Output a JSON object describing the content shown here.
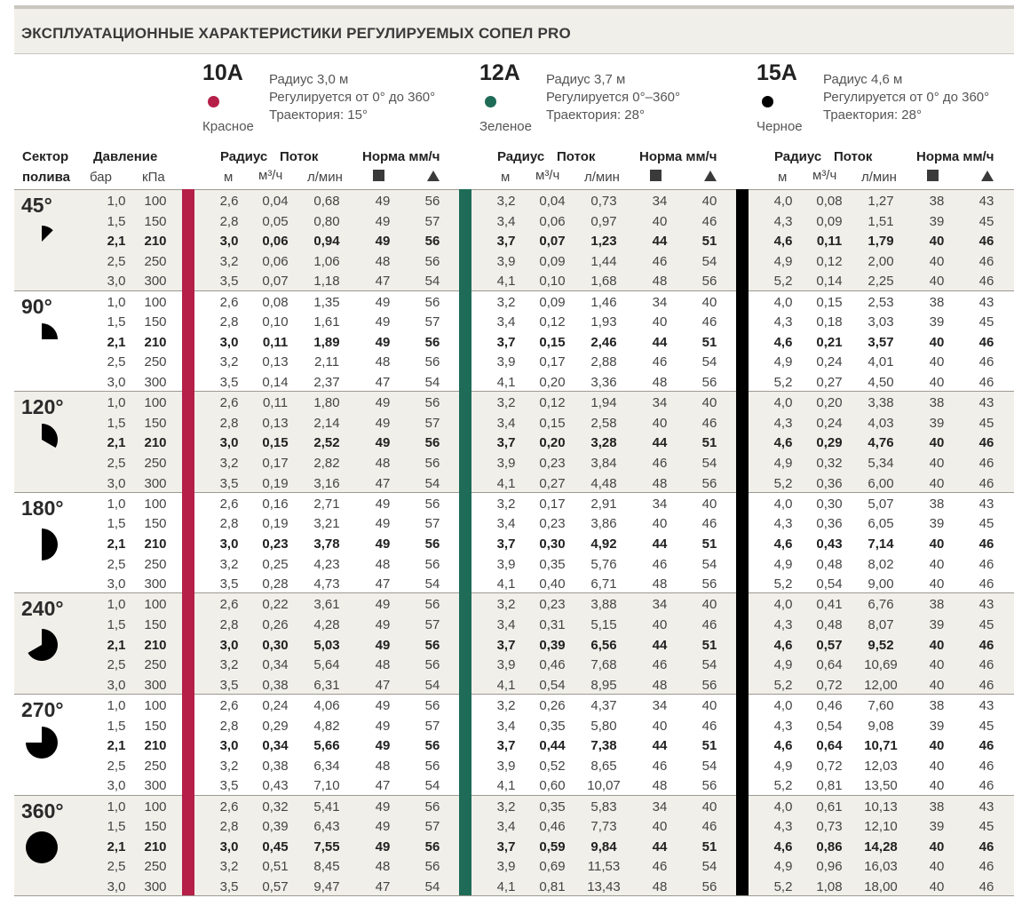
{
  "title": "ЭКСПЛУАТАЦИОННЫЕ ХАРАКТЕРИСТИКИ РЕГУЛИРУЕМЫХ СОПЕЛ PRO",
  "nozzles": [
    {
      "name": "10A",
      "color_name": "Красное",
      "color": "#b51f48",
      "radius": "Радиус 3,0 м",
      "adjust": "Регулируется от 0° до 360°",
      "trajectory": "Траектория: 15°"
    },
    {
      "name": "12A",
      "color_name": "Зеленое",
      "color": "#1e6b57",
      "radius": "Радиус 3,7 м",
      "adjust": "Регулируется 0°–360°",
      "trajectory": "Траектория: 28°"
    },
    {
      "name": "15A",
      "color_name": "Черное",
      "color": "#000000",
      "radius": "Радиус 4,6 м",
      "adjust": "Регулируется от 0° до 360°",
      "trajectory": "Траектория: 28°"
    }
  ],
  "headers": {
    "sector": "Сектор",
    "sector2": "полива",
    "pressure": "Давление",
    "bar": "бар",
    "kpa": "кПа",
    "radius": "Радиус",
    "m": "м",
    "flow": "Поток",
    "m3h": "м³/ч",
    "lmin": "л/мин",
    "norm": "Норма мм/ч"
  },
  "pressures": [
    [
      "1,0",
      "100"
    ],
    [
      "1,5",
      "150"
    ],
    [
      "2,1",
      "210"
    ],
    [
      "2,5",
      "250"
    ],
    [
      "3,0",
      "300"
    ]
  ],
  "sectors": [
    {
      "label": "45°",
      "rows": [
        [
          "2,6",
          "0,04",
          "0,68",
          "49",
          "56",
          "3,2",
          "0,04",
          "0,73",
          "34",
          "40",
          "4,0",
          "0,08",
          "1,27",
          "38",
          "43"
        ],
        [
          "2,8",
          "0,05",
          "0,80",
          "49",
          "57",
          "3,4",
          "0,06",
          "0,97",
          "40",
          "46",
          "4,3",
          "0,09",
          "1,51",
          "39",
          "45"
        ],
        [
          "3,0",
          "0,06",
          "0,94",
          "49",
          "56",
          "3,7",
          "0,07",
          "1,23",
          "44",
          "51",
          "4,6",
          "0,11",
          "1,79",
          "40",
          "46"
        ],
        [
          "3,2",
          "0,06",
          "1,06",
          "48",
          "56",
          "3,9",
          "0,09",
          "1,44",
          "46",
          "54",
          "4,9",
          "0,12",
          "2,00",
          "40",
          "46"
        ],
        [
          "3,5",
          "0,07",
          "1,18",
          "47",
          "54",
          "4,1",
          "0,10",
          "1,68",
          "48",
          "56",
          "5,2",
          "0,14",
          "2,25",
          "40",
          "46"
        ]
      ]
    },
    {
      "label": "90°",
      "rows": [
        [
          "2,6",
          "0,08",
          "1,35",
          "49",
          "56",
          "3,2",
          "0,09",
          "1,46",
          "34",
          "40",
          "4,0",
          "0,15",
          "2,53",
          "38",
          "43"
        ],
        [
          "2,8",
          "0,10",
          "1,61",
          "49",
          "57",
          "3,4",
          "0,12",
          "1,93",
          "40",
          "46",
          "4,3",
          "0,18",
          "3,03",
          "39",
          "45"
        ],
        [
          "3,0",
          "0,11",
          "1,89",
          "49",
          "56",
          "3,7",
          "0,15",
          "2,46",
          "44",
          "51",
          "4,6",
          "0,21",
          "3,57",
          "40",
          "46"
        ],
        [
          "3,2",
          "0,13",
          "2,11",
          "48",
          "56",
          "3,9",
          "0,17",
          "2,88",
          "46",
          "54",
          "4,9",
          "0,24",
          "4,01",
          "40",
          "46"
        ],
        [
          "3,5",
          "0,14",
          "2,37",
          "47",
          "54",
          "4,1",
          "0,20",
          "3,36",
          "48",
          "56",
          "5,2",
          "0,27",
          "4,50",
          "40",
          "46"
        ]
      ]
    },
    {
      "label": "120°",
      "rows": [
        [
          "2,6",
          "0,11",
          "1,80",
          "49",
          "56",
          "3,2",
          "0,12",
          "1,94",
          "34",
          "40",
          "4,0",
          "0,20",
          "3,38",
          "38",
          "43"
        ],
        [
          "2,8",
          "0,13",
          "2,14",
          "49",
          "57",
          "3,4",
          "0,15",
          "2,58",
          "40",
          "46",
          "4,3",
          "0,24",
          "4,03",
          "39",
          "45"
        ],
        [
          "3,0",
          "0,15",
          "2,52",
          "49",
          "56",
          "3,7",
          "0,20",
          "3,28",
          "44",
          "51",
          "4,6",
          "0,29",
          "4,76",
          "40",
          "46"
        ],
        [
          "3,2",
          "0,17",
          "2,82",
          "48",
          "56",
          "3,9",
          "0,23",
          "3,84",
          "46",
          "54",
          "4,9",
          "0,32",
          "5,34",
          "40",
          "46"
        ],
        [
          "3,5",
          "0,19",
          "3,16",
          "47",
          "54",
          "4,1",
          "0,27",
          "4,48",
          "48",
          "56",
          "5,2",
          "0,36",
          "6,00",
          "40",
          "46"
        ]
      ]
    },
    {
      "label": "180°",
      "rows": [
        [
          "2,6",
          "0,16",
          "2,71",
          "49",
          "56",
          "3,2",
          "0,17",
          "2,91",
          "34",
          "40",
          "4,0",
          "0,30",
          "5,07",
          "38",
          "43"
        ],
        [
          "2,8",
          "0,19",
          "3,21",
          "49",
          "57",
          "3,4",
          "0,23",
          "3,86",
          "40",
          "46",
          "4,3",
          "0,36",
          "6,05",
          "39",
          "45"
        ],
        [
          "3,0",
          "0,23",
          "3,78",
          "49",
          "56",
          "3,7",
          "0,30",
          "4,92",
          "44",
          "51",
          "4,6",
          "0,43",
          "7,14",
          "40",
          "46"
        ],
        [
          "3,2",
          "0,25",
          "4,23",
          "48",
          "56",
          "3,9",
          "0,35",
          "5,76",
          "46",
          "54",
          "4,9",
          "0,48",
          "8,02",
          "40",
          "46"
        ],
        [
          "3,5",
          "0,28",
          "4,73",
          "47",
          "54",
          "4,1",
          "0,40",
          "6,71",
          "48",
          "56",
          "5,2",
          "0,54",
          "9,00",
          "40",
          "46"
        ]
      ]
    },
    {
      "label": "240°",
      "rows": [
        [
          "2,6",
          "0,22",
          "3,61",
          "49",
          "56",
          "3,2",
          "0,23",
          "3,88",
          "34",
          "40",
          "4,0",
          "0,41",
          "6,76",
          "38",
          "43"
        ],
        [
          "2,8",
          "0,26",
          "4,28",
          "49",
          "57",
          "3,4",
          "0,31",
          "5,15",
          "40",
          "46",
          "4,3",
          "0,48",
          "8,07",
          "39",
          "45"
        ],
        [
          "3,0",
          "0,30",
          "5,03",
          "49",
          "56",
          "3,7",
          "0,39",
          "6,56",
          "44",
          "51",
          "4,6",
          "0,57",
          "9,52",
          "40",
          "46"
        ],
        [
          "3,2",
          "0,34",
          "5,64",
          "48",
          "56",
          "3,9",
          "0,46",
          "7,68",
          "46",
          "54",
          "4,9",
          "0,64",
          "10,69",
          "40",
          "46"
        ],
        [
          "3,5",
          "0,38",
          "6,31",
          "47",
          "54",
          "4,1",
          "0,54",
          "8,95",
          "48",
          "56",
          "5,2",
          "0,72",
          "12,00",
          "40",
          "46"
        ]
      ]
    },
    {
      "label": "270°",
      "rows": [
        [
          "2,6",
          "0,24",
          "4,06",
          "49",
          "56",
          "3,2",
          "0,26",
          "4,37",
          "34",
          "40",
          "4,0",
          "0,46",
          "7,60",
          "38",
          "43"
        ],
        [
          "2,8",
          "0,29",
          "4,82",
          "49",
          "57",
          "3,4",
          "0,35",
          "5,80",
          "40",
          "46",
          "4,3",
          "0,54",
          "9,08",
          "39",
          "45"
        ],
        [
          "3,0",
          "0,34",
          "5,66",
          "49",
          "56",
          "3,7",
          "0,44",
          "7,38",
          "44",
          "51",
          "4,6",
          "0,64",
          "10,71",
          "40",
          "46"
        ],
        [
          "3,2",
          "0,38",
          "6,34",
          "48",
          "56",
          "3,9",
          "0,52",
          "8,65",
          "46",
          "54",
          "4,9",
          "0,72",
          "12,03",
          "40",
          "46"
        ],
        [
          "3,5",
          "0,43",
          "7,10",
          "47",
          "54",
          "4,1",
          "0,60",
          "10,07",
          "48",
          "56",
          "5,2",
          "0,81",
          "13,50",
          "40",
          "46"
        ]
      ]
    },
    {
      "label": "360°",
      "rows": [
        [
          "2,6",
          "0,32",
          "5,41",
          "49",
          "56",
          "3,2",
          "0,35",
          "5,83",
          "34",
          "40",
          "4,0",
          "0,61",
          "10,13",
          "38",
          "43"
        ],
        [
          "2,8",
          "0,39",
          "6,43",
          "49",
          "57",
          "3,4",
          "0,46",
          "7,73",
          "40",
          "46",
          "4,3",
          "0,73",
          "12,10",
          "39",
          "45"
        ],
        [
          "3,0",
          "0,45",
          "7,55",
          "49",
          "56",
          "3,7",
          "0,59",
          "9,84",
          "44",
          "51",
          "4,6",
          "0,86",
          "14,28",
          "40",
          "46"
        ],
        [
          "3,2",
          "0,51",
          "8,45",
          "48",
          "56",
          "3,9",
          "0,69",
          "11,53",
          "46",
          "54",
          "4,9",
          "0,96",
          "16,03",
          "40",
          "46"
        ],
        [
          "3,5",
          "0,57",
          "9,47",
          "47",
          "54",
          "4,1",
          "0,81",
          "13,43",
          "48",
          "56",
          "5,2",
          "1,08",
          "18,00",
          "40",
          "46"
        ]
      ]
    }
  ]
}
